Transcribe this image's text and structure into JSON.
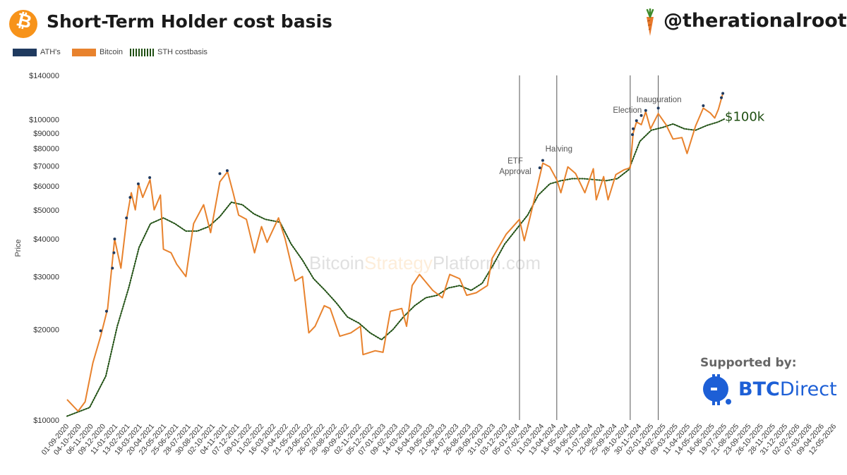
{
  "header": {
    "title": "Short-Term Holder cost basis",
    "handle": "@therationalroot",
    "btc_glyph": "₿"
  },
  "sponsor": {
    "supported_label": "Supported by:",
    "name_bold": "BTC",
    "name_rest": "Direct"
  },
  "colors": {
    "bitcoin": "#e8822d",
    "ath": "#1f3a5f",
    "sth": "#1f4f12",
    "vline": "#555555",
    "accent": "#f7931a",
    "sponsor_blue": "#1d5fd6"
  },
  "chart_data": {
    "type": "line",
    "title": "Short-Term Holder cost basis",
    "ylabel": "Price",
    "yscale": "log",
    "ylim": [
      10000,
      140000
    ],
    "xlim": [
      "2020-09-01",
      "2026-05-12"
    ],
    "y_ticks": [
      {
        "v": 10000,
        "label": "$10000"
      },
      {
        "v": 20000,
        "label": "$20000"
      },
      {
        "v": 30000,
        "label": "$30000"
      },
      {
        "v": 40000,
        "label": "$40000"
      },
      {
        "v": 50000,
        "label": "$50000"
      },
      {
        "v": 60000,
        "label": "$60000"
      },
      {
        "v": 70000,
        "label": "$70000"
      },
      {
        "v": 80000,
        "label": "$80000"
      },
      {
        "v": 90000,
        "label": "$90000"
      },
      {
        "v": 100000,
        "label": "$100000"
      },
      {
        "v": 140000,
        "label": "$140000"
      }
    ],
    "x_tick_labels": [
      "01-09-2020",
      "04-10-2020",
      "06-11-2020",
      "09-12-2020",
      "11-01-2021",
      "13-02-2021",
      "18-03-2021",
      "20-04-2021",
      "23-05-2021",
      "25-06-2021",
      "28-07-2021",
      "30-08-2021",
      "02-10-2021",
      "04-11-2021",
      "07-12-2021",
      "09-01-2022",
      "11-02-2022",
      "16-03-2022",
      "18-04-2022",
      "21-05-2022",
      "23-06-2022",
      "26-07-2022",
      "28-08-2022",
      "30-09-2022",
      "02-11-2022",
      "05-12-2022",
      "07-01-2023",
      "09-02-2023",
      "14-03-2023",
      "16-04-2023",
      "19-05-2023",
      "21-06-2023",
      "24-07-2023",
      "26-08-2023",
      "28-09-2023",
      "31-10-2023",
      "03-12-2023",
      "05-01-2024",
      "07-02-2024",
      "11-03-2024",
      "13-04-2024",
      "16-05-2024",
      "18-06-2024",
      "21-07-2024",
      "23-08-2024",
      "25-09-2024",
      "28-10-2024",
      "30-11-2024",
      "02-01-2025",
      "04-02-2025",
      "09-03-2025",
      "11-04-2025",
      "14-05-2025",
      "16-06-2025",
      "19-07-2025",
      "21-08-2025",
      "23-09-2025",
      "26-10-2025",
      "28-11-2025",
      "31-12-2025",
      "02-02-2026",
      "07-03-2026",
      "09-04-2026",
      "12-05-2026"
    ],
    "legend": [
      "ATH's",
      "Bitcoin",
      "STH costbasis"
    ],
    "legend_position": "top-left",
    "grid": false,
    "series": [
      {
        "name": "Bitcoin",
        "x": [
          "2020-09-01",
          "2020-10-01",
          "2020-10-20",
          "2020-11-10",
          "2020-12-01",
          "2020-12-20",
          "2021-01-08",
          "2021-01-25",
          "2021-02-10",
          "2021-02-22",
          "2021-03-05",
          "2021-03-14",
          "2021-03-25",
          "2021-04-14",
          "2021-04-25",
          "2021-05-12",
          "2021-05-20",
          "2021-06-10",
          "2021-06-25",
          "2021-07-20",
          "2021-08-10",
          "2021-09-06",
          "2021-09-25",
          "2021-10-20",
          "2021-11-10",
          "2021-11-25",
          "2021-12-10",
          "2021-12-31",
          "2022-01-22",
          "2022-02-10",
          "2022-02-25",
          "2022-03-28",
          "2022-04-15",
          "2022-05-12",
          "2022-06-01",
          "2022-06-18",
          "2022-07-05",
          "2022-07-30",
          "2022-08-15",
          "2022-09-10",
          "2022-10-10",
          "2022-11-05",
          "2022-11-12",
          "2022-12-15",
          "2023-01-05",
          "2023-01-25",
          "2023-02-25",
          "2023-03-10",
          "2023-03-25",
          "2023-04-14",
          "2023-05-20",
          "2023-06-15",
          "2023-07-05",
          "2023-08-01",
          "2023-08-20",
          "2023-09-15",
          "2023-10-15",
          "2023-10-28",
          "2023-12-05",
          "2024-01-10",
          "2024-01-23",
          "2024-02-15",
          "2024-03-13",
          "2024-04-01",
          "2024-04-20",
          "2024-05-01",
          "2024-05-20",
          "2024-06-10",
          "2024-07-05",
          "2024-07-28",
          "2024-08-05",
          "2024-08-25",
          "2024-09-06",
          "2024-09-27",
          "2024-10-20",
          "2024-11-05",
          "2024-11-13",
          "2024-11-22",
          "2024-12-05",
          "2024-12-17",
          "2024-12-30",
          "2025-01-20",
          "2025-02-10",
          "2025-03-01",
          "2025-03-25",
          "2025-04-08",
          "2025-05-01",
          "2025-05-22",
          "2025-06-10",
          "2025-06-22",
          "2025-07-02",
          "2025-07-14"
        ],
        "values": [
          11700,
          10700,
          11500,
          15500,
          19000,
          23500,
          40000,
          32000,
          47000,
          57000,
          50000,
          61000,
          55000,
          63000,
          50000,
          56000,
          37000,
          36000,
          33000,
          30000,
          45000,
          52000,
          42000,
          62000,
          67000,
          57000,
          48000,
          46500,
          36000,
          44000,
          39000,
          47000,
          40000,
          29000,
          30000,
          19500,
          20500,
          24000,
          23500,
          19000,
          19500,
          20500,
          16500,
          17000,
          16800,
          23000,
          23500,
          20500,
          28000,
          30500,
          27000,
          25500,
          30500,
          29500,
          26000,
          26500,
          28000,
          34500,
          41500,
          46500,
          39500,
          51500,
          71500,
          69500,
          63000,
          57000,
          69500,
          66000,
          57000,
          68500,
          54000,
          64500,
          54000,
          65500,
          68000,
          69000,
          90000,
          98000,
          96000,
          106000,
          93000,
          104500,
          96000,
          86000,
          87000,
          77000,
          95000,
          109000,
          105000,
          101000,
          108000,
          122000
        ]
      },
      {
        "name": "STH costbasis",
        "x": [
          "2020-09-01",
          "2020-11-01",
          "2020-12-15",
          "2021-01-15",
          "2021-02-15",
          "2021-03-15",
          "2021-04-15",
          "2021-05-20",
          "2021-06-20",
          "2021-07-20",
          "2021-08-20",
          "2021-09-20",
          "2021-10-20",
          "2021-11-20",
          "2021-12-20",
          "2022-01-20",
          "2022-02-20",
          "2022-04-01",
          "2022-05-01",
          "2022-06-01",
          "2022-07-01",
          "2022-08-01",
          "2022-09-01",
          "2022-10-01",
          "2022-11-01",
          "2022-12-01",
          "2023-01-01",
          "2023-02-01",
          "2023-03-01",
          "2023-04-01",
          "2023-05-01",
          "2023-06-01",
          "2023-07-01",
          "2023-08-01",
          "2023-09-01",
          "2023-10-01",
          "2023-11-01",
          "2023-12-01",
          "2024-01-01",
          "2024-02-01",
          "2024-03-01",
          "2024-04-01",
          "2024-05-01",
          "2024-06-01",
          "2024-07-01",
          "2024-08-01",
          "2024-09-01",
          "2024-10-01",
          "2024-11-01",
          "2024-12-01",
          "2025-01-01",
          "2025-02-01",
          "2025-03-01",
          "2025-04-01",
          "2025-05-01",
          "2025-06-01",
          "2025-07-01",
          "2025-07-20"
        ],
        "values": [
          10300,
          11000,
          14000,
          20500,
          27500,
          37500,
          45000,
          47000,
          45000,
          42500,
          42500,
          44000,
          47500,
          53000,
          52000,
          48500,
          46500,
          45500,
          38500,
          34000,
          29500,
          27000,
          24500,
          22000,
          21000,
          19500,
          18500,
          20000,
          22000,
          24000,
          25500,
          26000,
          27500,
          28000,
          27000,
          28500,
          33000,
          38500,
          43000,
          48000,
          56000,
          61000,
          62500,
          63500,
          63500,
          63000,
          62500,
          63500,
          68000,
          84500,
          92000,
          94000,
          96500,
          93000,
          92000,
          95500,
          98000,
          100500
        ]
      },
      {
        "name": "ATH's",
        "x": [
          "2020-12-01",
          "2020-12-17",
          "2021-01-02",
          "2021-01-06",
          "2021-01-08",
          "2021-02-09",
          "2021-02-19",
          "2021-03-13",
          "2021-04-13",
          "2021-10-20",
          "2021-11-09",
          "2024-03-05",
          "2024-03-13",
          "2024-11-11",
          "2024-11-13",
          "2024-11-22",
          "2024-12-05",
          "2024-12-17",
          "2025-01-20",
          "2025-05-22",
          "2025-07-10",
          "2025-07-14"
        ],
        "values": [
          19800,
          23000,
          32000,
          36000,
          40000,
          47000,
          55000,
          61000,
          64000,
          66000,
          67500,
          69000,
          73000,
          89000,
          93000,
          99000,
          103000,
          107000,
          109000,
          111000,
          118000,
          122000
        ]
      }
    ],
    "annotations": [
      {
        "date": "2024-01-10",
        "text": [
          "ETF",
          "Approval"
        ]
      },
      {
        "date": "2024-04-20",
        "text": [
          "Halving"
        ]
      },
      {
        "date": "2024-11-05",
        "text": [
          "Election"
        ]
      },
      {
        "date": "2025-01-20",
        "text": [
          "Inauguration"
        ]
      }
    ],
    "callout": {
      "text": "$100k",
      "value": 100000
    },
    "watermark": {
      "part1": "Bitcoin",
      "part2": "Strategy",
      "part3": "Platform.com"
    }
  }
}
